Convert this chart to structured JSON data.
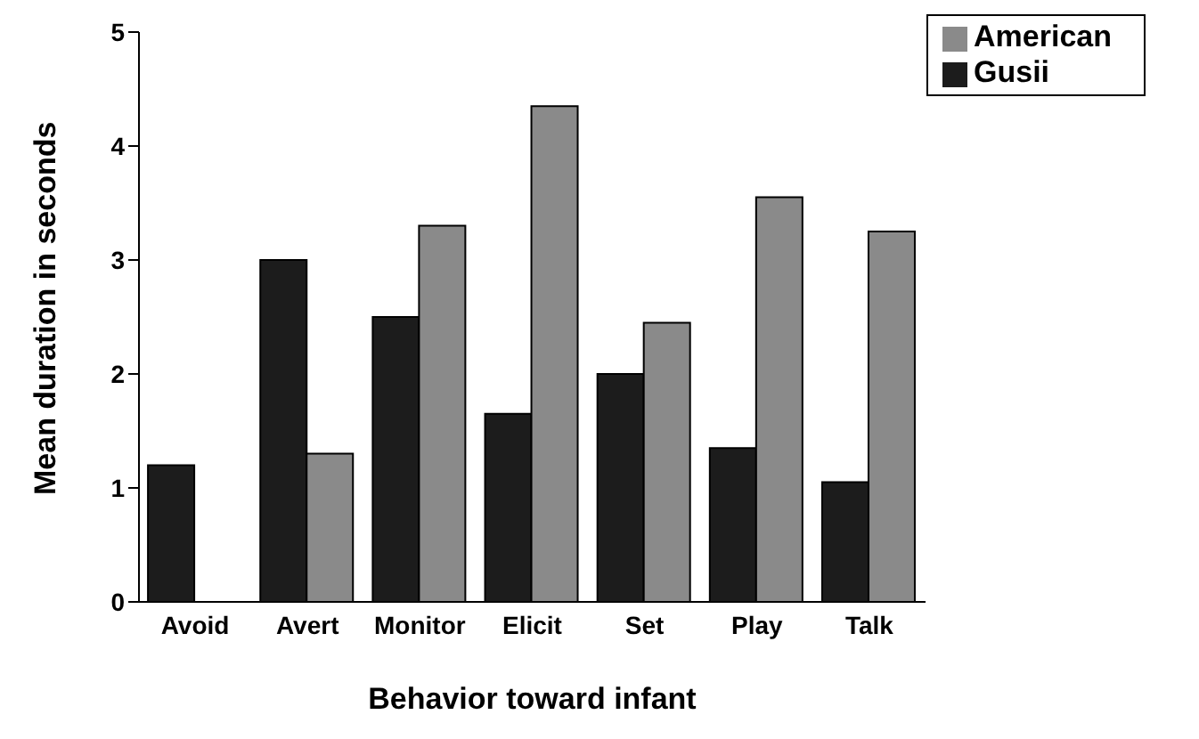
{
  "chart_data": {
    "type": "bar",
    "xlabel": "Behavior toward infant",
    "ylabel": "Mean duration in seconds",
    "categories": [
      "Avoid",
      "Avert",
      "Monitor",
      "Elicit",
      "Set",
      "Play",
      "Talk"
    ],
    "series": [
      {
        "name": "Gusii",
        "color": "#1c1c1c",
        "values": [
          1.2,
          3.0,
          2.5,
          1.65,
          2.0,
          1.35,
          1.05
        ]
      },
      {
        "name": "American",
        "color": "#8a8a8a",
        "values": [
          null,
          1.3,
          3.3,
          4.35,
          2.45,
          3.55,
          3.25
        ]
      }
    ],
    "ylim": [
      0,
      5
    ],
    "yticks": [
      0,
      1,
      2,
      3,
      4,
      5
    ],
    "grid": false,
    "legend": "top right"
  }
}
